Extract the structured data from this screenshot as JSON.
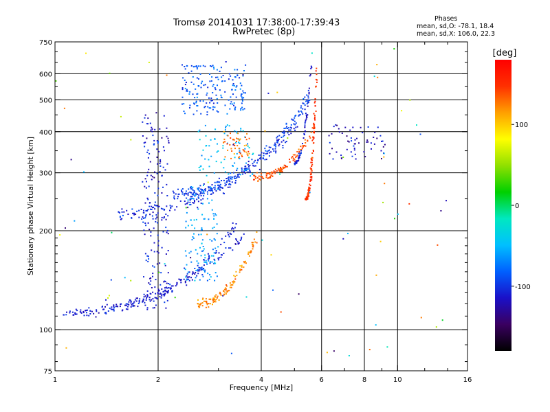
{
  "header": {
    "title_line1": "Tromsø 20141031 17:38:00-17:39:43",
    "title_line2": "RwPretec (8p)"
  },
  "stats": {
    "heading": "Phases",
    "line_o": "mean, sd,O: -78.1, 18.4",
    "line_x": "mean, sd,X: 106.0, 22.3"
  },
  "colorbar": {
    "label": "[deg]",
    "ticks": [
      {
        "value": 100,
        "label": "100"
      },
      {
        "value": 0,
        "label": "0"
      },
      {
        "value": -100,
        "label": "-100"
      }
    ],
    "range": [
      -180,
      180
    ],
    "colors": [
      "#000000",
      "#3a0060",
      "#1a10c8",
      "#0060ff",
      "#00c0ff",
      "#00e8c0",
      "#00d000",
      "#90e000",
      "#ffff00",
      "#ffa000",
      "#ff3000",
      "#ff0000"
    ]
  },
  "chart_data": {
    "type": "scatter",
    "xlabel": "Frequency [MHz]",
    "ylabel": "Stationary phase Virtual Height [km]",
    "xscale": "log",
    "yscale": "log",
    "xlim": [
      1,
      16
    ],
    "ylim": [
      75,
      750
    ],
    "grid": true,
    "x_ticks": [
      {
        "value": 1,
        "label": "1"
      },
      {
        "value": 2,
        "label": "2"
      },
      {
        "value": 4,
        "label": "4"
      },
      {
        "value": 6,
        "label": "6"
      },
      {
        "value": 8,
        "label": "8"
      },
      {
        "value": 10,
        "label": "10"
      },
      {
        "value": 16,
        "label": "16"
      }
    ],
    "x_grid": [
      2,
      4,
      6,
      8,
      10
    ],
    "x_minor": [
      3,
      5,
      7,
      9,
      12,
      14
    ],
    "y_ticks": [
      {
        "value": 75,
        "label": "75"
      },
      {
        "value": 100,
        "label": "100"
      },
      {
        "value": 200,
        "label": "200"
      },
      {
        "value": 300,
        "label": "300"
      },
      {
        "value": 400,
        "label": "400"
      },
      {
        "value": 500,
        "label": "500"
      },
      {
        "value": 600,
        "label": "600"
      },
      {
        "value": 750,
        "label": "750"
      }
    ],
    "y_grid": [
      100,
      200,
      300,
      400,
      500,
      600
    ],
    "traces": [
      {
        "kind": "curve",
        "f0": 1.05,
        "f1": 3.6,
        "h0": 112,
        "h1": 195,
        "phase": -110,
        "n": 150,
        "spread": 0.05
      },
      {
        "kind": "curve",
        "f0": 1.4,
        "f1": 3.4,
        "h0": 118,
        "h1": 210,
        "phase": -108,
        "n": 110,
        "spread": 0.06
      },
      {
        "kind": "curve",
        "f0": 2.6,
        "f1": 3.9,
        "h0": 120,
        "h1": 195,
        "phase": 120,
        "n": 120,
        "spread": 0.05
      },
      {
        "kind": "curve",
        "f0": 1.5,
        "f1": 5.1,
        "h0": 225,
        "h1": 420,
        "phase": -105,
        "n": 190,
        "spread": 0.07
      },
      {
        "kind": "curve",
        "f0": 2.2,
        "f1": 5.6,
        "h0": 260,
        "h1": 520,
        "phase": -95,
        "n": 200,
        "spread": 0.06
      },
      {
        "kind": "curve",
        "f0": 3.8,
        "f1": 5.8,
        "h0": 290,
        "h1": 420,
        "phase": 140,
        "n": 110,
        "spread": 0.04
      },
      {
        "kind": "curve",
        "f0": 5.4,
        "f1": 5.8,
        "h0": 250,
        "h1": 620,
        "phase": 150,
        "n": 110,
        "spread": 0.02
      },
      {
        "kind": "curve",
        "f0": 5.0,
        "f1": 5.6,
        "h0": 320,
        "h1": 640,
        "phase": -110,
        "n": 60,
        "spread": 0.02
      },
      {
        "kind": "cloud",
        "fmin": 1.8,
        "fmax": 2.15,
        "hmin": 115,
        "hmax": 450,
        "phase": -110,
        "n": 180
      },
      {
        "kind": "cloud",
        "fmin": 2.35,
        "fmax": 3.6,
        "hmin": 450,
        "hmax": 640,
        "phase": -85,
        "n": 180
      },
      {
        "kind": "cloud",
        "fmin": 2.4,
        "fmax": 3.0,
        "hmin": 140,
        "hmax": 280,
        "phase": -60,
        "n": 120
      },
      {
        "kind": "cloud",
        "fmin": 2.6,
        "fmax": 3.8,
        "hmin": 290,
        "hmax": 420,
        "phase": -50,
        "n": 80
      },
      {
        "kind": "cloud",
        "fmin": 3.1,
        "fmax": 3.7,
        "hmin": 330,
        "hmax": 400,
        "phase": 130,
        "n": 50
      },
      {
        "kind": "cloud",
        "fmin": 6.3,
        "fmax": 9.2,
        "hmin": 330,
        "hmax": 420,
        "phase": -120,
        "n": 60
      },
      {
        "kind": "cloud",
        "fmin": 1.0,
        "fmax": 14.5,
        "hmin": 80,
        "hmax": 720,
        "phase": 0,
        "n": 80
      }
    ]
  }
}
